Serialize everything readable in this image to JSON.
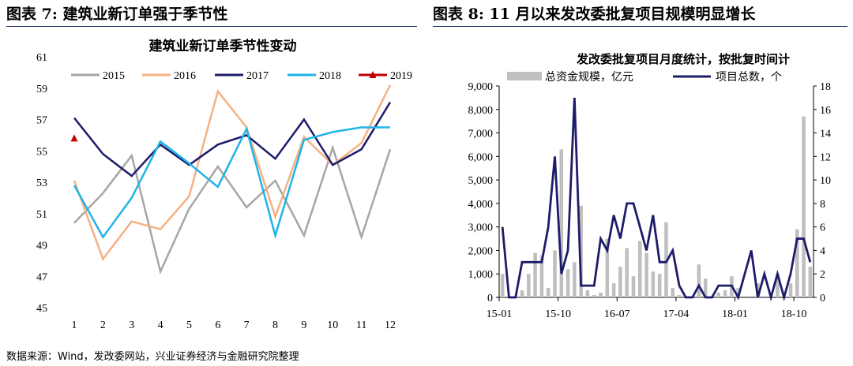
{
  "left_header": "图表 7:   建筑业新订单强于季节性",
  "right_header": "图表 8:  11 月以来发改委批复项目规模明显增长",
  "footer": "数据来源：Wind，发改委网站，兴业证券经济与金融研究院整理",
  "chart_data": [
    {
      "type": "line",
      "title": "建筑业新订单季节性变动",
      "categories": [
        "1",
        "2",
        "3",
        "4",
        "5",
        "6",
        "7",
        "8",
        "9",
        "10",
        "11",
        "12"
      ],
      "ylim": [
        45,
        61
      ],
      "yticks": [
        45,
        47,
        49,
        51,
        53,
        55,
        57,
        59,
        61
      ],
      "legend_position": "top",
      "grid": false,
      "series": [
        {
          "name": "2015",
          "color": "#a6a6a6",
          "values": [
            50.4,
            52.3,
            54.7,
            47.3,
            51.3,
            54.0,
            51.4,
            53.1,
            49.6,
            55.2,
            49.5,
            55.1
          ]
        },
        {
          "name": "2016",
          "color": "#f4b183",
          "values": [
            53.1,
            48.1,
            50.5,
            50.0,
            52.1,
            58.8,
            56.5,
            50.8,
            55.9,
            54.1,
            55.5,
            59.2
          ]
        },
        {
          "name": "2017",
          "color": "#1c1c6b",
          "values": [
            57.1,
            54.8,
            53.4,
            55.4,
            54.1,
            55.4,
            56.0,
            54.5,
            57.0,
            54.1,
            55.1,
            58.1
          ]
        },
        {
          "name": "2018",
          "color": "#1fb4e8",
          "values": [
            52.8,
            49.5,
            52.0,
            55.6,
            54.2,
            52.7,
            56.4,
            49.6,
            55.7,
            56.2,
            56.5,
            56.5
          ]
        },
        {
          "name": "2019",
          "color": "#c00000",
          "marker": "triangle",
          "values": [
            55.8,
            null,
            null,
            null,
            null,
            null,
            null,
            null,
            null,
            null,
            null,
            null
          ]
        }
      ]
    },
    {
      "type": "bar+line",
      "title": "发改委批复项目月度统计，按批复时间计",
      "x_tick_labels": [
        "15-01",
        "15-10",
        "16-07",
        "17-04",
        "18-01",
        "18-10"
      ],
      "x_tick_indices": [
        0,
        9,
        18,
        27,
        36,
        45
      ],
      "y_left": {
        "lim": [
          0,
          9000
        ],
        "ticks": [
          0,
          1000,
          2000,
          3000,
          4000,
          5000,
          6000,
          7000,
          8000,
          9000
        ],
        "tick_labels": [
          "0",
          "1,000",
          "2,000",
          "3,000",
          "4,000",
          "5,000",
          "6,000",
          "7,000",
          "8,000",
          "9,000"
        ]
      },
      "y_right": {
        "lim": [
          0,
          18
        ],
        "ticks": [
          0,
          2,
          4,
          6,
          8,
          10,
          12,
          14,
          16,
          18
        ]
      },
      "legend_position": "top",
      "series": [
        {
          "name": "总资金规模，亿元",
          "axis": "left",
          "kind": "bar",
          "color": "#bfbfbf",
          "values": [
            1000,
            0,
            0,
            300,
            1000,
            1900,
            1800,
            400,
            2000,
            6300,
            1200,
            1500,
            3900,
            300,
            100,
            200,
            2500,
            600,
            1300,
            2100,
            900,
            2400,
            1900,
            1100,
            1000,
            3200,
            400,
            100,
            0,
            0,
            1400,
            800,
            0,
            200,
            300,
            900,
            400,
            0,
            0,
            600,
            0,
            0,
            1000,
            0,
            600,
            2900,
            7700,
            1300
          ]
        },
        {
          "name": "项目总数，个",
          "axis": "right",
          "kind": "line",
          "color": "#1c1c6b",
          "values": [
            6,
            0,
            0,
            3,
            3,
            3,
            3,
            6,
            12,
            2,
            4,
            17,
            1,
            1,
            1,
            5,
            4,
            7,
            5,
            8,
            8,
            6,
            4,
            7,
            3,
            3,
            4,
            1,
            0,
            0,
            1,
            0,
            0,
            1,
            1,
            1,
            0,
            2,
            4,
            0,
            2,
            0,
            2,
            0,
            2,
            5,
            5,
            3
          ]
        }
      ]
    }
  ]
}
